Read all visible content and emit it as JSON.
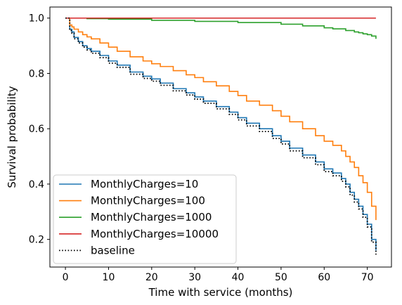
{
  "chart_data": {
    "type": "line",
    "step": true,
    "xlabel": "Time with service (months)",
    "ylabel": "Survival probability",
    "xlim": [
      -3.6,
      75.6
    ],
    "ylim": [
      0.1,
      1.04
    ],
    "xticks": [
      0,
      10,
      20,
      30,
      40,
      50,
      60,
      70
    ],
    "yticks": [
      0.2,
      0.4,
      0.6,
      0.8,
      1.0
    ],
    "xtick_labels": [
      "0",
      "10",
      "20",
      "30",
      "40",
      "50",
      "60",
      "70"
    ],
    "ytick_labels": [
      "0.2",
      "0.4",
      "0.6",
      "0.8",
      "1.0"
    ],
    "grid": false,
    "legend_position": "lower-left",
    "series": [
      {
        "name": "MonthlyCharges=10",
        "color": "#1f77b4",
        "style": "solid",
        "x": [
          0,
          1,
          1.5,
          2,
          3,
          4,
          5,
          6,
          8,
          10,
          12,
          15,
          18,
          20,
          22,
          25,
          28,
          30,
          32,
          35,
          38,
          40,
          42,
          45,
          48,
          50,
          52,
          55,
          58,
          60,
          62,
          64,
          65,
          66,
          67,
          68,
          69,
          70,
          71,
          72
        ],
        "y": [
          1.0,
          0.96,
          0.95,
          0.93,
          0.915,
          0.9,
          0.89,
          0.88,
          0.865,
          0.845,
          0.83,
          0.805,
          0.79,
          0.78,
          0.765,
          0.745,
          0.73,
          0.715,
          0.7,
          0.68,
          0.66,
          0.64,
          0.62,
          0.6,
          0.575,
          0.555,
          0.53,
          0.505,
          0.48,
          0.455,
          0.44,
          0.42,
          0.4,
          0.37,
          0.345,
          0.32,
          0.29,
          0.255,
          0.2,
          0.16
        ]
      },
      {
        "name": "MonthlyCharges=100",
        "color": "#ff7f0e",
        "style": "solid",
        "x": [
          0,
          1,
          1.5,
          2,
          3,
          4,
          5,
          6,
          8,
          10,
          12,
          15,
          18,
          20,
          22,
          25,
          28,
          30,
          32,
          35,
          38,
          40,
          42,
          45,
          48,
          50,
          52,
          55,
          58,
          60,
          62,
          64,
          65,
          66,
          67,
          68,
          69,
          70,
          71,
          72
        ],
        "y": [
          1.0,
          0.975,
          0.968,
          0.96,
          0.95,
          0.94,
          0.932,
          0.925,
          0.91,
          0.895,
          0.88,
          0.86,
          0.845,
          0.835,
          0.825,
          0.81,
          0.795,
          0.785,
          0.77,
          0.755,
          0.735,
          0.72,
          0.7,
          0.685,
          0.665,
          0.645,
          0.625,
          0.6,
          0.575,
          0.555,
          0.54,
          0.52,
          0.5,
          0.48,
          0.46,
          0.43,
          0.405,
          0.37,
          0.32,
          0.27
        ]
      },
      {
        "name": "MonthlyCharges=1000",
        "color": "#2ca02c",
        "style": "solid",
        "x": [
          0,
          5,
          10,
          20,
          30,
          40,
          50,
          55,
          60,
          62,
          65,
          67,
          68,
          69,
          70,
          71,
          72
        ],
        "y": [
          1.0,
          0.998,
          0.996,
          0.992,
          0.988,
          0.984,
          0.978,
          0.972,
          0.965,
          0.961,
          0.955,
          0.95,
          0.947,
          0.943,
          0.94,
          0.935,
          0.925
        ]
      },
      {
        "name": "MonthlyCharges=10000",
        "color": "#d62728",
        "style": "solid",
        "x": [
          0,
          72
        ],
        "y": [
          1.0,
          1.0
        ]
      },
      {
        "name": "baseline",
        "color": "#000000",
        "style": "dotted",
        "x": [
          0,
          1,
          1.5,
          2,
          3,
          4,
          5,
          6,
          8,
          10,
          12,
          15,
          18,
          20,
          22,
          25,
          28,
          30,
          32,
          35,
          38,
          40,
          42,
          45,
          48,
          50,
          52,
          55,
          58,
          60,
          62,
          64,
          65,
          66,
          67,
          68,
          69,
          70,
          71,
          72
        ],
        "y": [
          1.0,
          0.955,
          0.945,
          0.925,
          0.91,
          0.895,
          0.885,
          0.873,
          0.857,
          0.837,
          0.822,
          0.797,
          0.782,
          0.772,
          0.757,
          0.737,
          0.722,
          0.707,
          0.692,
          0.672,
          0.652,
          0.632,
          0.61,
          0.59,
          0.565,
          0.545,
          0.52,
          0.495,
          0.47,
          0.445,
          0.43,
          0.41,
          0.39,
          0.36,
          0.335,
          0.31,
          0.28,
          0.245,
          0.19,
          0.145
        ]
      }
    ]
  }
}
